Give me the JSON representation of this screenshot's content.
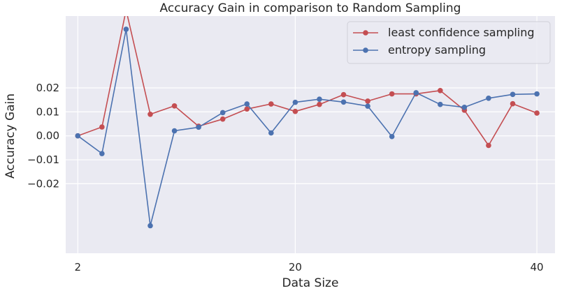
{
  "chart_data": {
    "type": "line",
    "title": "Accuracy Gain in comparison to Random Sampling",
    "xlabel": "Data Size",
    "ylabel": "Accuracy Gain",
    "xlim": [
      1.0,
      41.5
    ],
    "ylim": [
      -0.049,
      0.05
    ],
    "x_ticks": [
      {
        "value": 2,
        "label": "2"
      },
      {
        "value": 20,
        "label": "20"
      },
      {
        "value": 40,
        "label": "40"
      }
    ],
    "y_ticks": [
      {
        "value": 0.02,
        "label": "0.02"
      },
      {
        "value": 0.01,
        "label": "0.01"
      },
      {
        "value": 0.0,
        "label": "0.00"
      },
      {
        "value": -0.01,
        "label": "−0.01"
      },
      {
        "value": -0.02,
        "label": "−0.02"
      }
    ],
    "grid": true,
    "legend_position": "top-right",
    "x": [
      2,
      4,
      6,
      8,
      10,
      12,
      14,
      16,
      18,
      20,
      22,
      24,
      26,
      28,
      30,
      32,
      34,
      36,
      38,
      40
    ],
    "series": [
      {
        "name": "least confidence sampling",
        "color": "#c44e52",
        "values": [
          0.0,
          0.0037,
          0.0525,
          0.009,
          0.0125,
          0.004,
          0.007,
          0.0112,
          0.0133,
          0.0102,
          0.0131,
          0.0172,
          0.0145,
          0.0175,
          0.0175,
          0.0189,
          0.0107,
          -0.004,
          0.0134,
          0.0095
        ]
      },
      {
        "name": "entropy sampling",
        "color": "#4c72b0",
        "values": [
          0.0,
          -0.0074,
          0.0445,
          -0.0375,
          0.0021,
          0.0036,
          0.0097,
          0.0133,
          0.0012,
          0.014,
          0.0153,
          0.0141,
          0.0124,
          -0.0003,
          0.018,
          0.0131,
          0.0119,
          0.0157,
          0.0173,
          0.0175
        ]
      }
    ]
  }
}
